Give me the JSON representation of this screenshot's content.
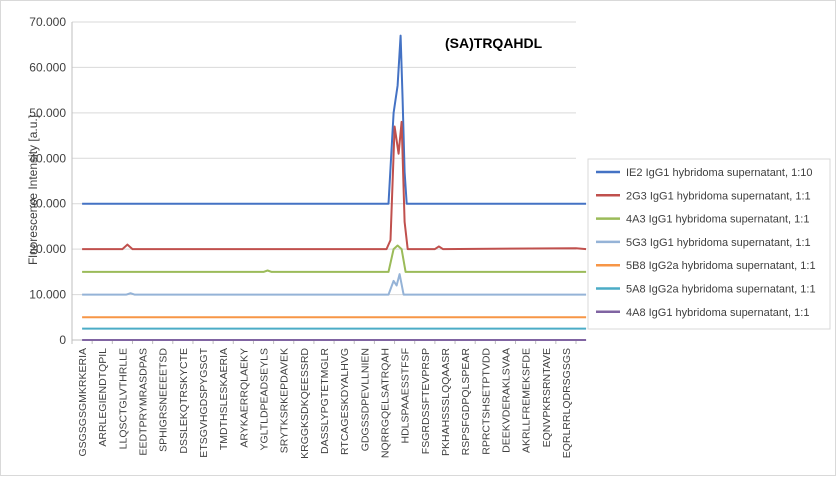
{
  "chart_data": {
    "type": "line",
    "title": "",
    "annotation": "(SA)TRQAHDL",
    "xlabel": "",
    "ylabel": "Fluorescence Intensity [a.u.]",
    "ylim": [
      0,
      70000
    ],
    "yticks": [
      0,
      10000,
      20000,
      30000,
      40000,
      50000,
      60000,
      70000
    ],
    "ytick_labels": [
      "0",
      "10.000",
      "20.000",
      "30.000",
      "40.000",
      "50.000",
      "60.000",
      "70.000"
    ],
    "xtick_labels": [
      "GSGSGSGMKRKERIA",
      "ARRLEGIENDTQPIL",
      "LLQSCTGLVTHRLLE",
      "EEDTPRYMRASDPAS",
      "SPHIGRSNEEEETSD",
      "DSSLEKQTRSKYCTE",
      "ETSGVHGDSPYGSGT",
      "TMDTHSLESKAERIA",
      "ARYKAERRQLAEKY",
      "YGLTLDPEADSEYLS",
      "SRYTKSRKEPDAVEK",
      "KRGGKSDKQEESSRD",
      "DASSLYPGTETMGLR",
      "RTCAGESKDYALHVG",
      "GDGSSDPEVLLNIEN",
      "NQRRGQELSATRQAH",
      "HDLSPAAESSTFSF",
      "FSGRDSSFTEVPRSP",
      "PKHAHSSSLQQAASR",
      "RSPSFGDPQLSPEAR",
      "RPRCTSHSETPTVDD",
      "DEEKVDERAKLSVAA",
      "AKRLLFREMEKSFDE",
      "EQNVPKRSRNTAVE",
      "EQRLRRLQDRSGSGS"
    ],
    "grid": true,
    "legend": "right",
    "series": [
      {
        "name": "IE2 IgG1 hybridoma supernatant, 1:10",
        "color": "#4472c4",
        "x": [
          0,
          15.2,
          15.45,
          15.65,
          15.8,
          15.9,
          16.0,
          16.1,
          16.3,
          25
        ],
        "y": [
          30000,
          30000,
          50000,
          56000,
          67000,
          53000,
          37000,
          30000,
          30000,
          30000
        ]
      },
      {
        "name": "2G3 IgG1 hybridoma supernatant, 1:1",
        "color": "#c0504d",
        "x": [
          0,
          2.0,
          2.25,
          2.5,
          15.1,
          15.3,
          15.5,
          15.7,
          15.85,
          16.0,
          16.15,
          17.5,
          17.7,
          17.9,
          24.5,
          25
        ],
        "y": [
          20000,
          20000,
          21000,
          20000,
          20000,
          22000,
          47000,
          41000,
          48000,
          26000,
          20000,
          20000,
          20600,
          20000,
          20200,
          20000
        ]
      },
      {
        "name": "4A3 IgG1 hybridoma supernatant, 1:1",
        "color": "#9bbb59",
        "x": [
          0,
          9.0,
          9.2,
          9.4,
          15.2,
          15.45,
          15.65,
          15.85,
          16.05,
          25
        ],
        "y": [
          15000,
          15000,
          15300,
          15000,
          15000,
          20000,
          20800,
          20000,
          15000,
          15000
        ]
      },
      {
        "name": "5G3 IgG1 hybridoma supernatant, 1:1",
        "color": "#95b3d7",
        "x": [
          0,
          2.2,
          2.4,
          2.6,
          15.2,
          15.45,
          15.6,
          15.75,
          15.95,
          16.1,
          25
        ],
        "y": [
          10000,
          10000,
          10300,
          10000,
          10000,
          13000,
          12000,
          14500,
          10000,
          10000,
          10000
        ]
      },
      {
        "name": "5B8 IgG2a hybridoma supernatant, 1:1",
        "color": "#f79646",
        "x": [
          0,
          25
        ],
        "y": [
          5000,
          5000
        ]
      },
      {
        "name": "5A8 IgG2a hybridoma supernatant, 1:1",
        "color": "#4bacc6",
        "x": [
          0,
          25
        ],
        "y": [
          2500,
          2500
        ]
      },
      {
        "name": "4A8 IgG1 hybridoma supernatant, 1:1",
        "color": "#8064a2",
        "x": [
          0,
          25
        ],
        "y": [
          0,
          0
        ]
      }
    ]
  }
}
